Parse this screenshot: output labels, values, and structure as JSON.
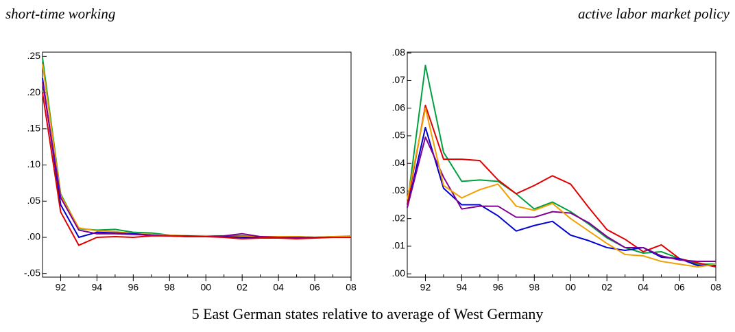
{
  "chart_data": [
    {
      "type": "line",
      "title": "short-time working",
      "x": [
        1991,
        1992,
        1993,
        1994,
        1995,
        1996,
        1997,
        1998,
        1999,
        2000,
        2001,
        2002,
        2003,
        2004,
        2005,
        2006,
        2007,
        2008
      ],
      "xlim": [
        1991,
        2008
      ],
      "xticks": [
        {
          "value": 1992,
          "label": "92"
        },
        {
          "value": 1994,
          "label": "94"
        },
        {
          "value": 1996,
          "label": "96"
        },
        {
          "value": 1998,
          "label": "98"
        },
        {
          "value": 2000,
          "label": "00"
        },
        {
          "value": 2002,
          "label": "02"
        },
        {
          "value": 2004,
          "label": "04"
        },
        {
          "value": 2006,
          "label": "06"
        },
        {
          "value": 2008,
          "label": "08"
        }
      ],
      "ylim": [
        -0.055,
        0.256
      ],
      "yticks": [
        {
          "value": -0.05,
          "label": "-.05"
        },
        {
          "value": 0,
          "label": ".00"
        },
        {
          "value": 0.05,
          "label": ".05"
        },
        {
          "value": 0.1,
          "label": ".10"
        },
        {
          "value": 0.15,
          "label": ".15"
        },
        {
          "value": 0.2,
          "label": ".20"
        },
        {
          "value": 0.25,
          "label": ".25"
        }
      ],
      "series": [
        {
          "color": "#00a040",
          "values": [
            0.248,
            0.06,
            0.012,
            0.01,
            0.011,
            0.007,
            0.006,
            0.003,
            0.002,
            0.002,
            0.002,
            0.002,
            0.001,
            0.001,
            0.001,
            0.0,
            0.001,
            0.001
          ]
        },
        {
          "color": "#f0a000",
          "values": [
            0.24,
            0.058,
            0.013,
            0.009,
            0.008,
            0.005,
            0.004,
            0.003,
            0.002,
            0.002,
            0.001,
            0.001,
            0.001,
            0.001,
            0.001,
            0.0,
            0.001,
            0.002
          ]
        },
        {
          "color": "#0000d0",
          "values": [
            0.22,
            0.045,
            0.0,
            0.007,
            0.006,
            0.005,
            0.003,
            0.002,
            0.001,
            0.001,
            0.001,
            0.0,
            0.0,
            0.0,
            -0.001,
            0.0,
            0.0,
            0.0
          ]
        },
        {
          "color": "#800090",
          "values": [
            0.215,
            0.055,
            0.01,
            0.005,
            0.005,
            0.004,
            0.003,
            0.002,
            0.002,
            0.001,
            0.002,
            0.005,
            0.001,
            0.0,
            0.0,
            0.0,
            0.0,
            0.0
          ]
        },
        {
          "color": "#e00000",
          "values": [
            0.2,
            0.035,
            -0.011,
            0.0,
            0.001,
            0.0,
            0.002,
            0.002,
            0.001,
            0.001,
            0.0,
            -0.002,
            -0.001,
            -0.001,
            -0.002,
            -0.001,
            0.0,
            0.0
          ]
        }
      ]
    },
    {
      "type": "line",
      "title": "active labor market policy",
      "x": [
        1991,
        1992,
        1993,
        1994,
        1995,
        1996,
        1997,
        1998,
        1999,
        2000,
        2001,
        2002,
        2003,
        2004,
        2005,
        2006,
        2007,
        2008
      ],
      "xlim": [
        1991,
        2008
      ],
      "xticks": [
        {
          "value": 1992,
          "label": "92"
        },
        {
          "value": 1994,
          "label": "94"
        },
        {
          "value": 1996,
          "label": "96"
        },
        {
          "value": 1998,
          "label": "98"
        },
        {
          "value": 2000,
          "label": "00"
        },
        {
          "value": 2002,
          "label": "02"
        },
        {
          "value": 2004,
          "label": "04"
        },
        {
          "value": 2006,
          "label": "06"
        },
        {
          "value": 2008,
          "label": "08"
        }
      ],
      "ylim": [
        -0.0012,
        0.0803
      ],
      "yticks": [
        {
          "value": 0,
          "label": ".00"
        },
        {
          "value": 0.01,
          "label": ".01"
        },
        {
          "value": 0.02,
          "label": ".02"
        },
        {
          "value": 0.03,
          "label": ".03"
        },
        {
          "value": 0.04,
          "label": ".04"
        },
        {
          "value": 0.05,
          "label": ".05"
        },
        {
          "value": 0.06,
          "label": ".06"
        },
        {
          "value": 0.07,
          "label": ".07"
        },
        {
          "value": 0.08,
          "label": ".08"
        }
      ],
      "series": [
        {
          "color": "#00a040",
          "values": [
            0.025,
            0.0755,
            0.044,
            0.0335,
            0.034,
            0.0335,
            0.029,
            0.0235,
            0.026,
            0.0225,
            0.018,
            0.013,
            0.0095,
            0.0075,
            0.008,
            0.0055,
            0.0035,
            0.0035
          ]
        },
        {
          "color": "#e00000",
          "values": [
            0.025,
            0.061,
            0.0415,
            0.0415,
            0.041,
            0.034,
            0.029,
            0.032,
            0.0355,
            0.0325,
            0.024,
            0.016,
            0.0125,
            0.008,
            0.0105,
            0.0055,
            0.004,
            0.0025
          ]
        },
        {
          "color": "#0000d0",
          "values": [
            0.024,
            0.053,
            0.031,
            0.025,
            0.025,
            0.021,
            0.0155,
            0.0175,
            0.019,
            0.014,
            0.012,
            0.0095,
            0.0085,
            0.0095,
            0.006,
            0.0055,
            0.003,
            0.003
          ]
        },
        {
          "color": "#800090",
          "values": [
            0.024,
            0.0495,
            0.035,
            0.0235,
            0.0245,
            0.0245,
            0.0205,
            0.0205,
            0.0225,
            0.022,
            0.0185,
            0.0135,
            0.0095,
            0.0095,
            0.0065,
            0.005,
            0.0045,
            0.0045
          ]
        },
        {
          "color": "#f0a000",
          "values": [
            0.027,
            0.06,
            0.032,
            0.0275,
            0.0305,
            0.0325,
            0.0245,
            0.023,
            0.0255,
            0.02,
            0.0155,
            0.011,
            0.007,
            0.0065,
            0.0045,
            0.0035,
            0.0025,
            0.0035
          ]
        }
      ]
    }
  ],
  "caption": "5 East German states relative to average of West Germany"
}
